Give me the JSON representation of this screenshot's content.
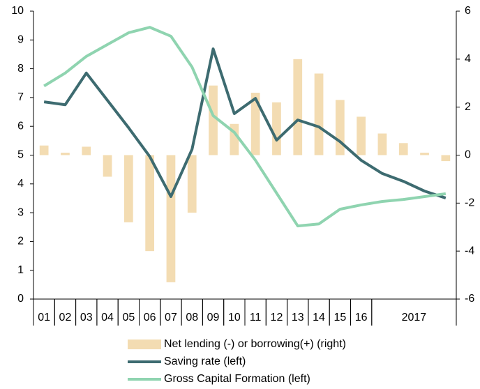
{
  "chart_data": {
    "type": "bar-line",
    "categories": [
      "01",
      "02",
      "03",
      "04",
      "05",
      "06",
      "07",
      "08",
      "09",
      "10",
      "11",
      "12",
      "13",
      "14",
      "15",
      "16",
      "2017",
      null,
      null,
      null
    ],
    "series": [
      {
        "name": "Net lending (-) or borrowing(+) (right)",
        "type": "bar",
        "axis": "y2",
        "color": "#f3dcb2",
        "values": [
          0.4,
          0.1,
          0.35,
          -0.9,
          -2.8,
          -4.0,
          -5.3,
          -2.4,
          2.9,
          1.3,
          2.6,
          2.2,
          4.0,
          3.4,
          2.3,
          1.6,
          0.9,
          0.5,
          0.1,
          -0.25
        ]
      },
      {
        "name": "Saving rate (left)",
        "type": "line",
        "color": "#3d6b70",
        "values": [
          6.85,
          6.75,
          7.85,
          6.9,
          5.95,
          4.95,
          3.56,
          5.2,
          8.69,
          6.44,
          6.97,
          5.52,
          6.22,
          5.98,
          5.47,
          4.82,
          4.36,
          4.09,
          3.75,
          3.51
        ]
      },
      {
        "name": "Gross Capital Formation (left)",
        "type": "line",
        "color": "#8fd4b0",
        "values": [
          7.4,
          7.85,
          8.43,
          8.84,
          9.25,
          9.44,
          9.13,
          8.06,
          6.37,
          5.79,
          4.82,
          3.68,
          2.54,
          2.61,
          3.12,
          3.27,
          3.39,
          3.46,
          3.56,
          3.66
        ]
      }
    ],
    "ylim": [
      0,
      10
    ],
    "yticks": [
      0,
      1,
      2,
      3,
      4,
      5,
      6,
      7,
      8,
      9,
      10
    ],
    "y2lim": [
      -6,
      6
    ],
    "y2ticks": [
      -6,
      -4,
      -2,
      0,
      2,
      4,
      6
    ],
    "legend": "bottom"
  }
}
